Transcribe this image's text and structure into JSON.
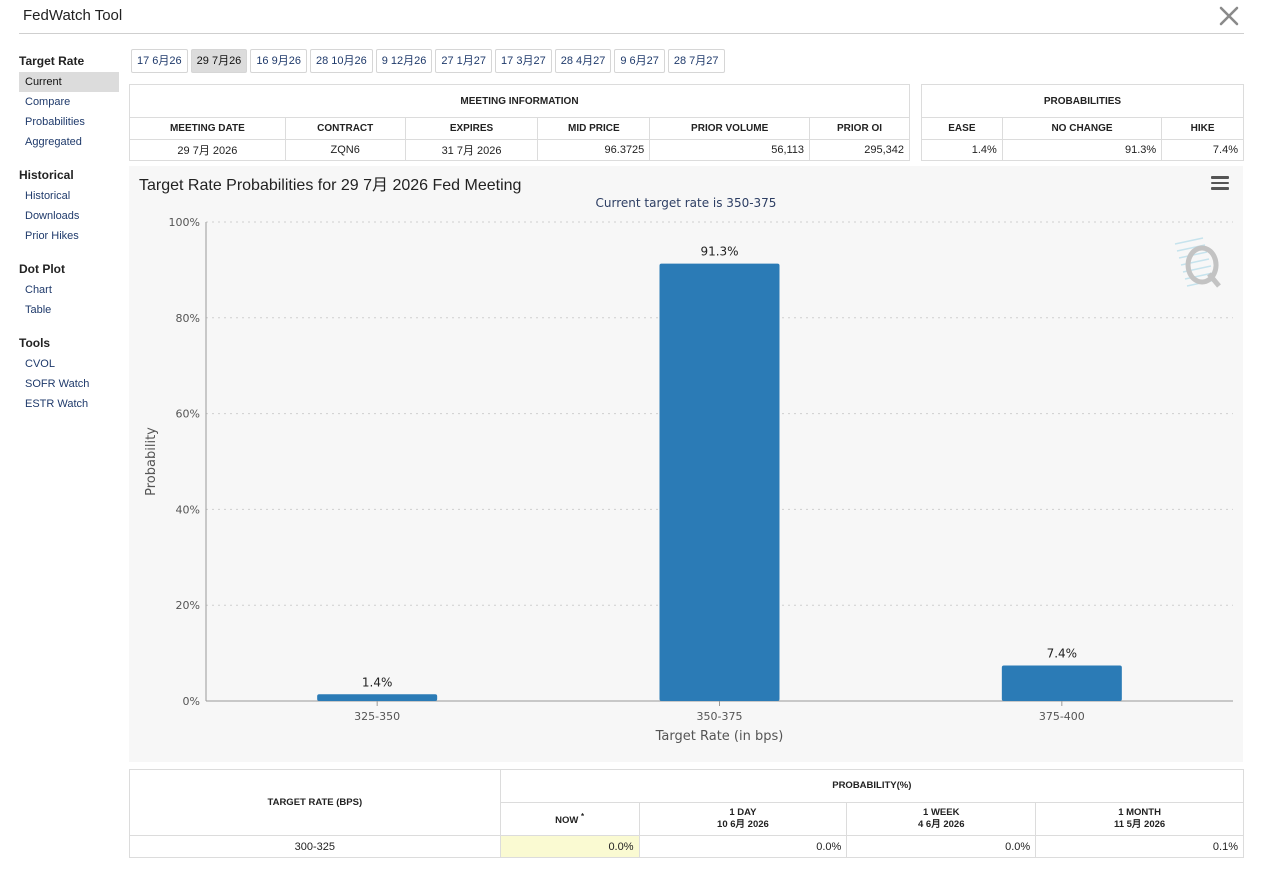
{
  "app": {
    "title": "FedWatch Tool"
  },
  "sidebar": {
    "groups": [
      {
        "heading": "Target Rate",
        "items": [
          "Current",
          "Compare",
          "Probabilities",
          "Aggregated"
        ]
      },
      {
        "heading": "Historical",
        "items": [
          "Historical",
          "Downloads",
          "Prior Hikes"
        ]
      },
      {
        "heading": "Dot Plot",
        "items": [
          "Chart",
          "Table"
        ]
      },
      {
        "heading": "Tools",
        "items": [
          "CVOL",
          "SOFR Watch",
          "ESTR Watch"
        ]
      }
    ],
    "active_item": "Current"
  },
  "date_tabs": [
    "17 6月26",
    "29 7月26",
    "16 9月26",
    "28 10月26",
    "9 12月26",
    "27 1月27",
    "17 3月27",
    "28 4月27",
    "9 6月27",
    "28 7月27"
  ],
  "active_date_tab": "29 7月26",
  "meeting_info": {
    "heading": "MEETING INFORMATION",
    "columns": [
      "MEETING DATE",
      "CONTRACT",
      "EXPIRES",
      "MID PRICE",
      "PRIOR VOLUME",
      "PRIOR OI"
    ],
    "row": [
      "29 7月 2026",
      "ZQN6",
      "31 7月 2026",
      "96.3725",
      "56,113",
      "295,342"
    ]
  },
  "probabilities": {
    "heading": "PROBABILITIES",
    "columns": [
      "EASE",
      "NO CHANGE",
      "HIKE"
    ],
    "row": [
      "1.4%",
      "91.3%",
      "7.4%"
    ]
  },
  "chart": {
    "title": "Target Rate Probabilities for 29 7月 2026 Fed Meeting",
    "subtitle": "Current target rate is 350-375",
    "colors": {
      "bar": "#2b7bb6",
      "grid": "#cfcfcf",
      "axis": "#999999",
      "text": "#555555"
    }
  },
  "chart_data": {
    "type": "bar",
    "categories": [
      "325-350",
      "350-375",
      "375-400"
    ],
    "values": [
      1.4,
      91.3,
      7.4
    ],
    "data_labels": [
      "1.4%",
      "91.3%",
      "7.4%"
    ],
    "xlabel": "Target Rate (in bps)",
    "ylabel": "Probability",
    "ylim": [
      0,
      100
    ],
    "yticks": [
      "0%",
      "20%",
      "40%",
      "60%",
      "80%",
      "100%"
    ],
    "grid": true
  },
  "bottom_table": {
    "target_rate_heading": "TARGET RATE (BPS)",
    "probability_heading": "PROBABILITY(%)",
    "columns": [
      {
        "label": "NOW",
        "marker": "*",
        "date": ""
      },
      {
        "label": "1 DAY",
        "date": "10 6月 2026"
      },
      {
        "label": "1 WEEK",
        "date": "4 6月 2026"
      },
      {
        "label": "1 MONTH",
        "date": "11 5月 2026"
      }
    ],
    "rows": [
      {
        "rate": "300-325",
        "values": [
          "0.0%",
          "0.0%",
          "0.0%",
          "0.1%"
        ]
      }
    ]
  }
}
